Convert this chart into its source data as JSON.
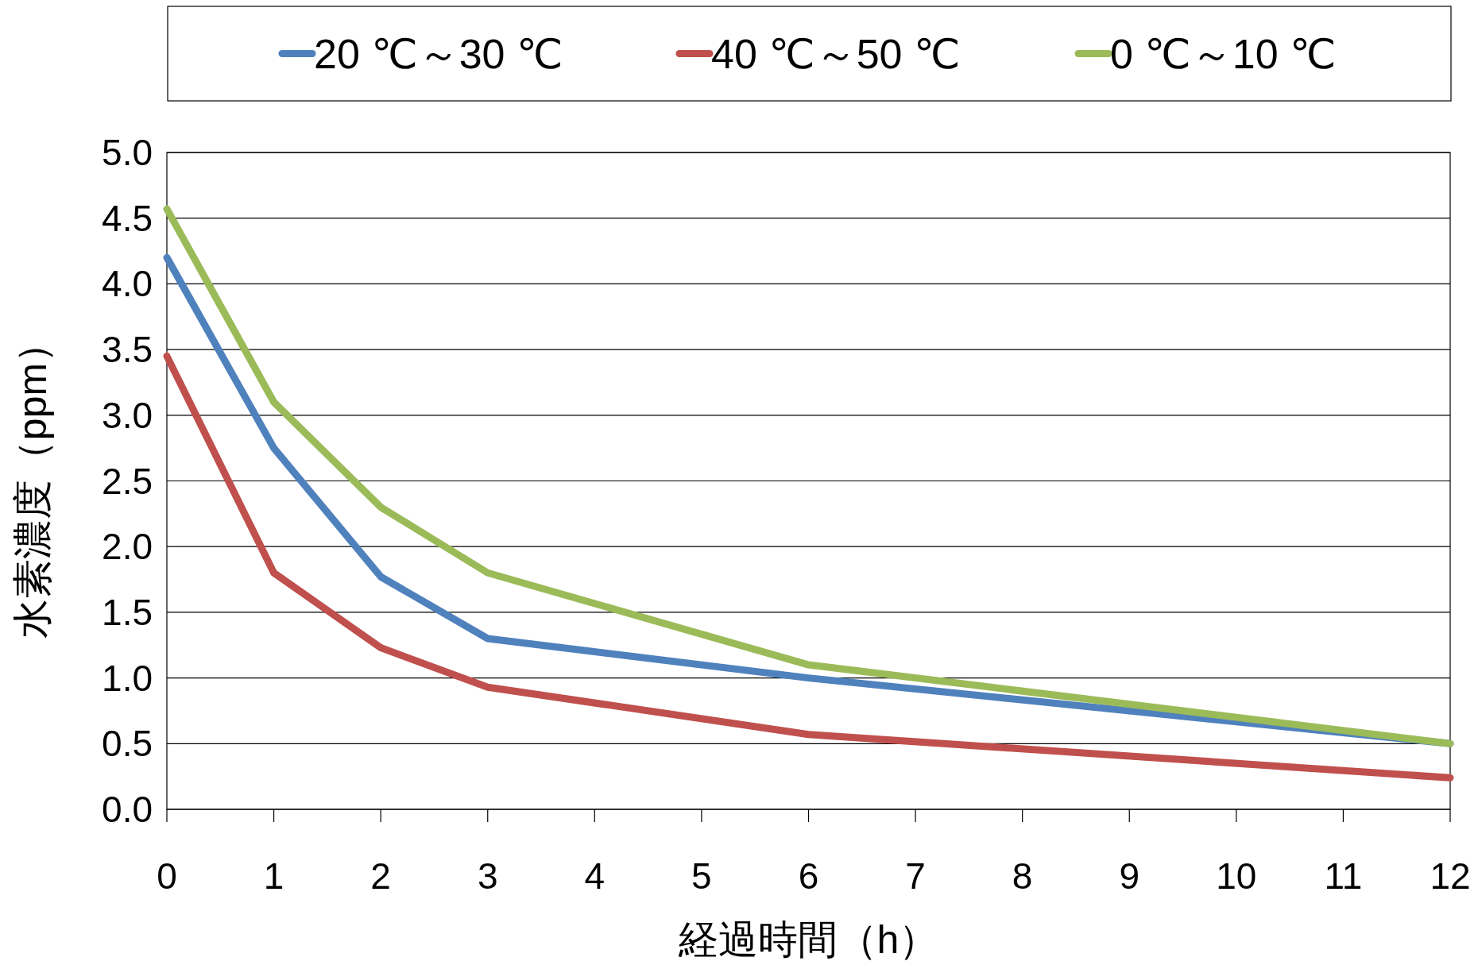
{
  "chart_data": {
    "type": "line",
    "xlabel": "経過時間（h）",
    "ylabel": "水素濃度（ppm）",
    "x": [
      0,
      1,
      2,
      3,
      6,
      12
    ],
    "xlim": [
      0,
      12
    ],
    "xticks": [
      0,
      1,
      2,
      3,
      4,
      5,
      6,
      7,
      8,
      9,
      10,
      11,
      12
    ],
    "ylim": [
      0,
      5
    ],
    "yticks": [
      {
        "value": 0,
        "label": "0.0"
      },
      {
        "value": 0.5,
        "label": "0.5"
      },
      {
        "value": 1,
        "label": "1.0"
      },
      {
        "value": 1.5,
        "label": "1.5"
      },
      {
        "value": 2,
        "label": "2.0"
      },
      {
        "value": 2.5,
        "label": "2.5"
      },
      {
        "value": 3,
        "label": "3.0"
      },
      {
        "value": 3.5,
        "label": "3.5"
      },
      {
        "value": 4,
        "label": "4.0"
      },
      {
        "value": 4.5,
        "label": "4.5"
      },
      {
        "value": 5,
        "label": "5.0"
      }
    ],
    "grid": "y",
    "legend": "top",
    "marker": "none",
    "line_style": "solid",
    "series": [
      {
        "name": "20 ℃～30 ℃",
        "color": "#4f81bd",
        "values": [
          4.2,
          2.75,
          1.77,
          1.3,
          1.0,
          0.5
        ]
      },
      {
        "name": "40 ℃～50 ℃",
        "color": "#c0504d",
        "values": [
          3.45,
          1.8,
          1.23,
          0.93,
          0.57,
          0.24
        ]
      },
      {
        "name": "0 ℃～10 ℃",
        "color": "#9bbb59",
        "values": [
          4.57,
          3.1,
          2.3,
          1.8,
          1.1,
          0.5
        ]
      }
    ]
  }
}
